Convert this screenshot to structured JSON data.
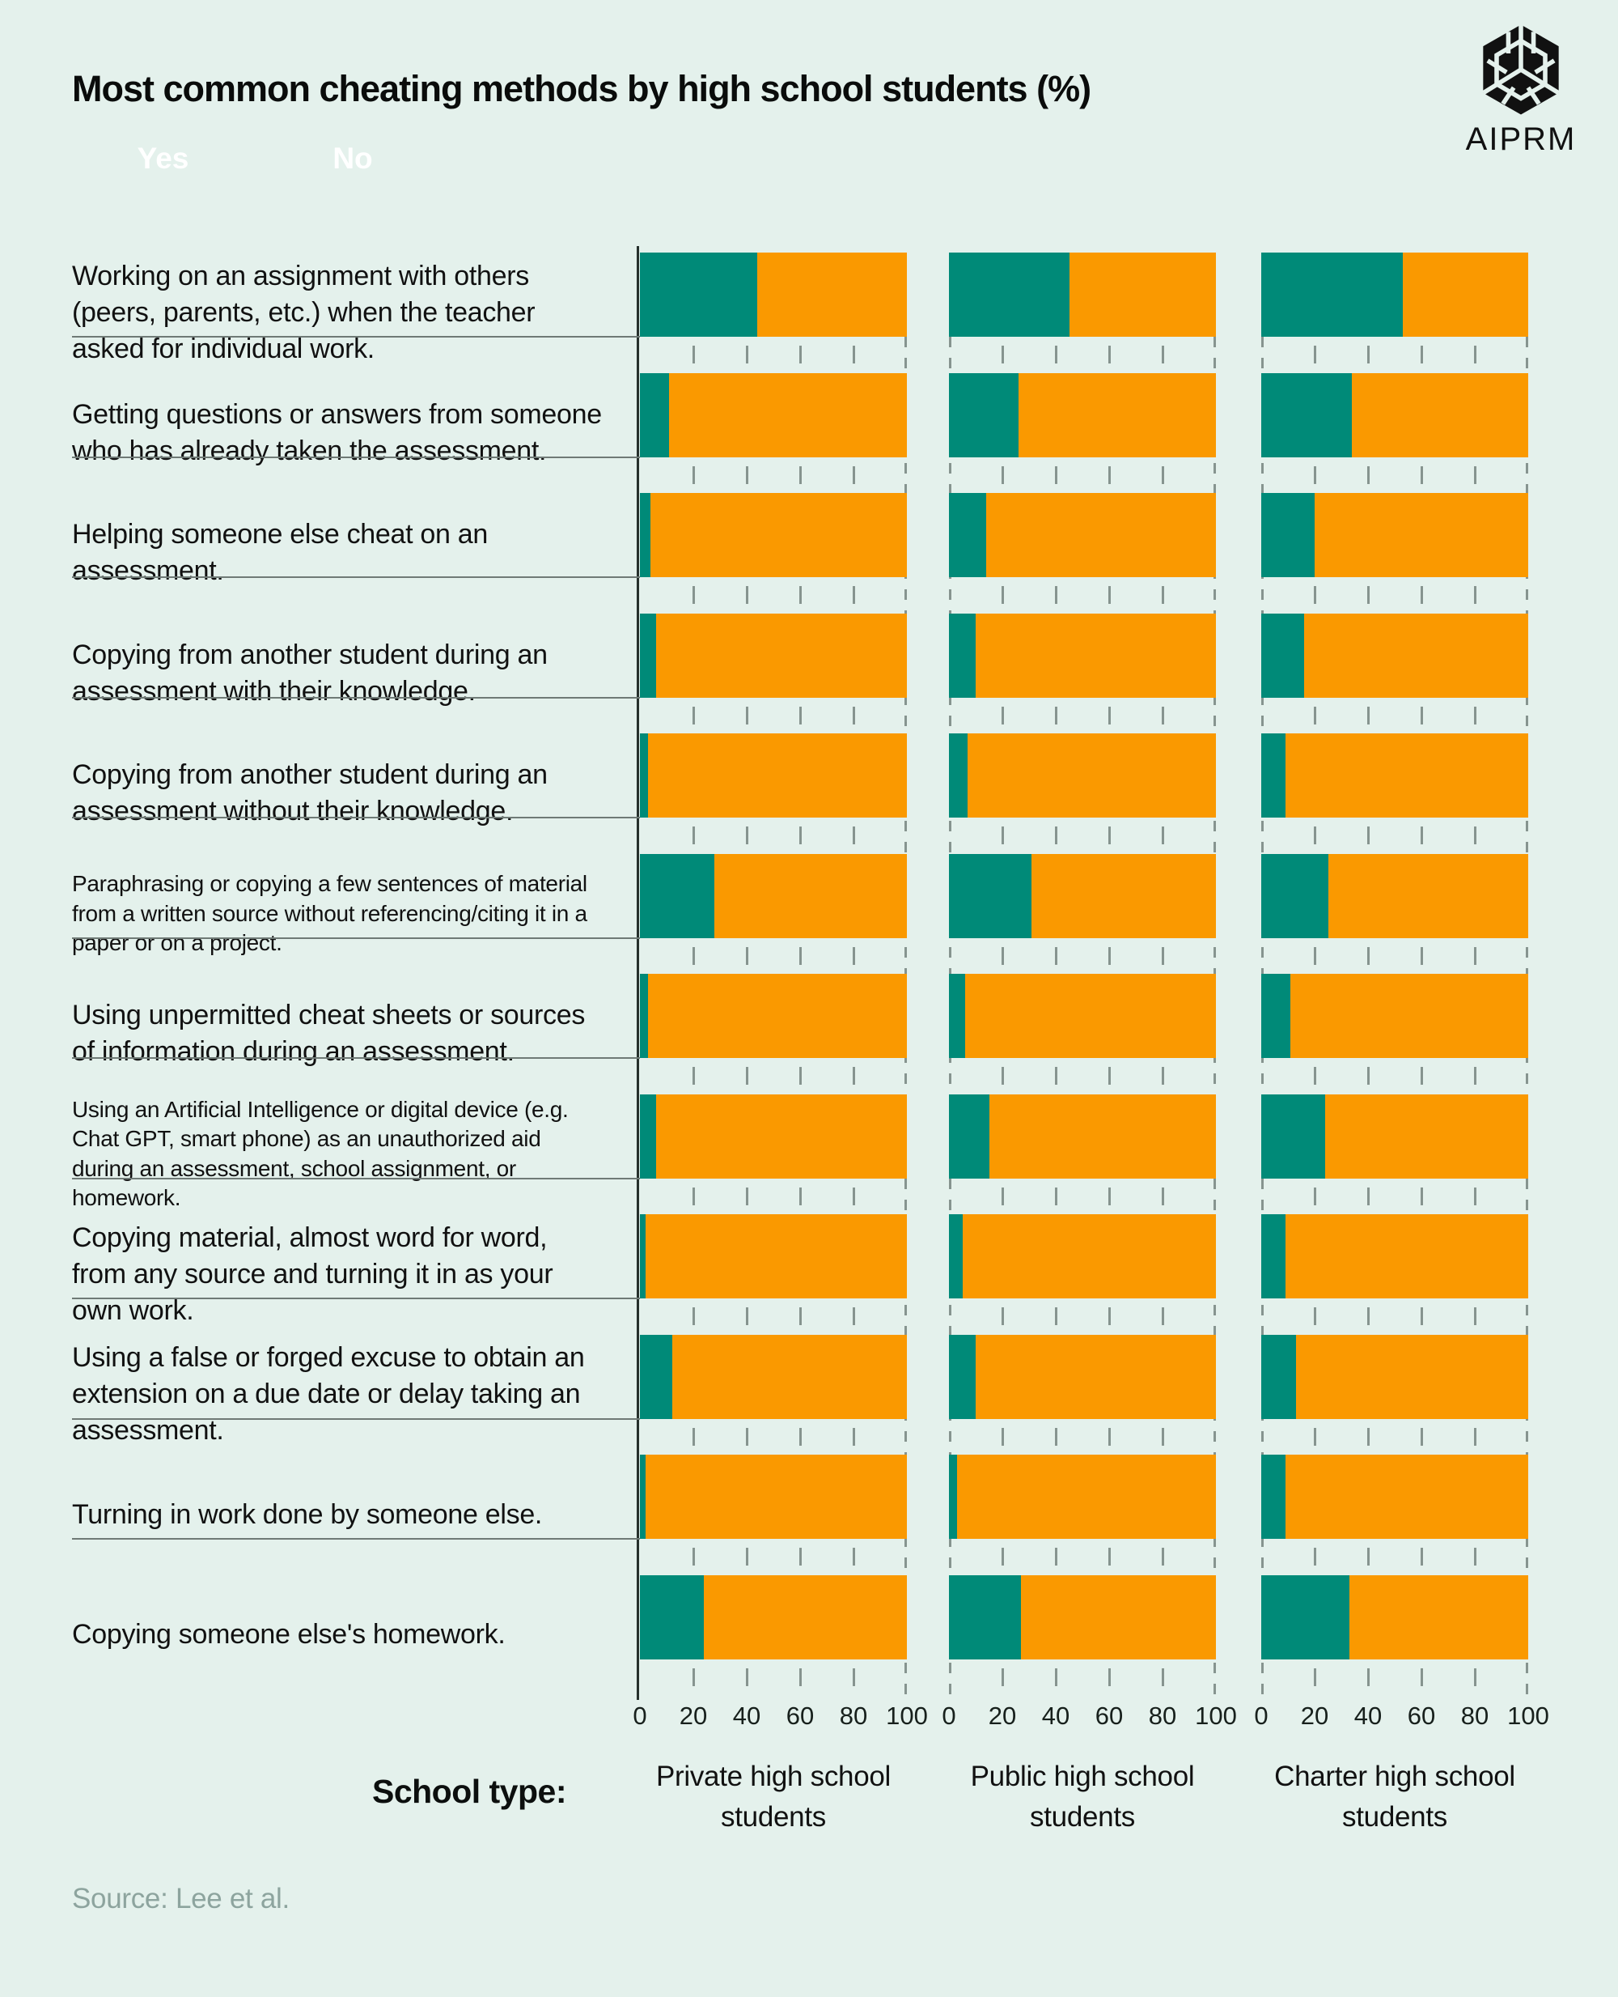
{
  "page": {
    "title": "Most common cheating methods by high school students (%)",
    "brand": "AIPRM",
    "school_type_caption": "School type:",
    "source": "Source: Lee et al."
  },
  "legend": {
    "yes_label": "Yes",
    "no_label": "No"
  },
  "colors": {
    "yes": "#008A78",
    "no": "#FA9900",
    "background": "#E4F1EC",
    "divider": "#6F7A76",
    "tick": "#86948F",
    "source_text": "#8DA49E"
  },
  "axis": {
    "ticks": [
      "0",
      "20",
      "40",
      "60",
      "80",
      "100"
    ]
  },
  "chart_data": {
    "type": "bar",
    "orientation": "horizontal",
    "stacked": true,
    "unit": "%",
    "title": "Most common cheating methods by high school students (%)",
    "legend_entries": [
      "Yes",
      "No"
    ],
    "legend_position": "top-left",
    "xlim": [
      0,
      100
    ],
    "grid": false,
    "note": "Each bar is a Yes/No split; No = 100 - Yes",
    "categories": [
      "Working on an assignment with others (peers, parents, etc.) when the teacher asked for individual work.",
      "Getting questions or answers from someone who has already taken the assessment.",
      "Helping someone else cheat on an assessment.",
      "Copying from another student during an assessment with their knowledge.",
      "Copying from another student during an assessment without their knowledge.",
      "Paraphrasing or copying a few sentences of material from a written source without referencing/citing it in a paper or on a project.",
      "Using unpermitted cheat sheets or sources of information during an assessment.",
      "Using an Artificial Intelligence or digital device (e.g. Chat GPT, smart phone) as an unauthorized aid during an assessment, school assignment, or homework.",
      "Copying material, almost word for word, from any source and turning it in as your own work.",
      "Using a false or forged excuse to obtain an extension on a due date or delay taking an assessment.",
      "Turning in work done by someone else.",
      "Copying someone else's homework."
    ],
    "series": [
      {
        "name": "Private high school students",
        "yes": [
          44,
          11,
          4,
          6,
          3,
          28,
          3,
          6,
          2,
          12,
          2,
          24
        ],
        "no": [
          56,
          89,
          96,
          94,
          97,
          72,
          97,
          94,
          98,
          88,
          98,
          76
        ]
      },
      {
        "name": "Public high school students",
        "yes": [
          45,
          26,
          14,
          10,
          7,
          31,
          6,
          15,
          5,
          10,
          3,
          27
        ],
        "no": [
          55,
          74,
          86,
          90,
          93,
          69,
          94,
          85,
          95,
          90,
          97,
          73
        ]
      },
      {
        "name": "Charter high school students",
        "yes": [
          53,
          34,
          20,
          16,
          9,
          25,
          11,
          24,
          9,
          13,
          9,
          33
        ],
        "no": [
          47,
          66,
          80,
          84,
          91,
          75,
          89,
          76,
          91,
          87,
          91,
          67
        ]
      }
    ]
  }
}
